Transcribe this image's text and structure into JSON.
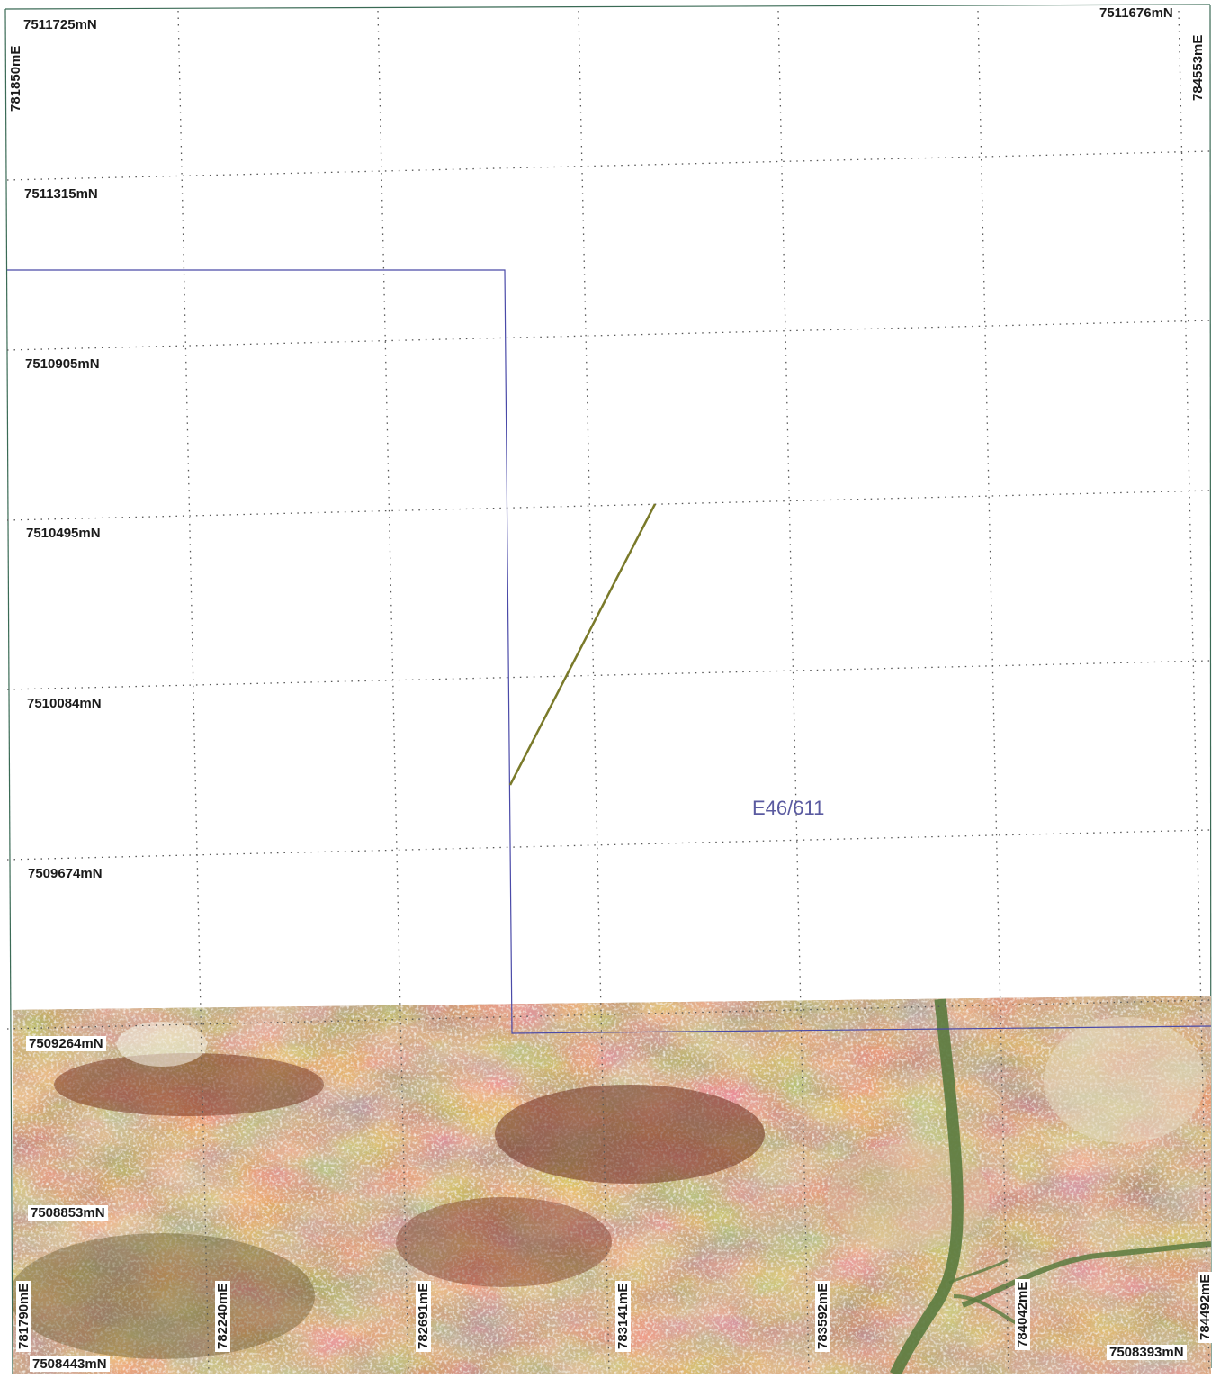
{
  "map": {
    "tenement_label": "E46/611",
    "colors": {
      "grid": "#555555",
      "boundary": "#4a4aa8",
      "feature_line": "#7a7a2a",
      "frame": "#3a6a55",
      "imagery_base": "#a87a4a"
    },
    "northing_labels": [
      "7511725mN",
      "7511315mN",
      "7510905mN",
      "7510495mN",
      "7510084mN",
      "7509674mN",
      "7509264mN",
      "7508853mN",
      "7508443mN"
    ],
    "northing_top_right": "7511676mN",
    "northing_bottom_right": "7508393mN",
    "easting_top_left": "781850mE",
    "easting_top_right": "784553mE",
    "easting_bottom_labels": [
      "781790mE",
      "782240mE",
      "782691mE",
      "783141mE",
      "783592mE",
      "784042mE",
      "784492mE"
    ]
  }
}
